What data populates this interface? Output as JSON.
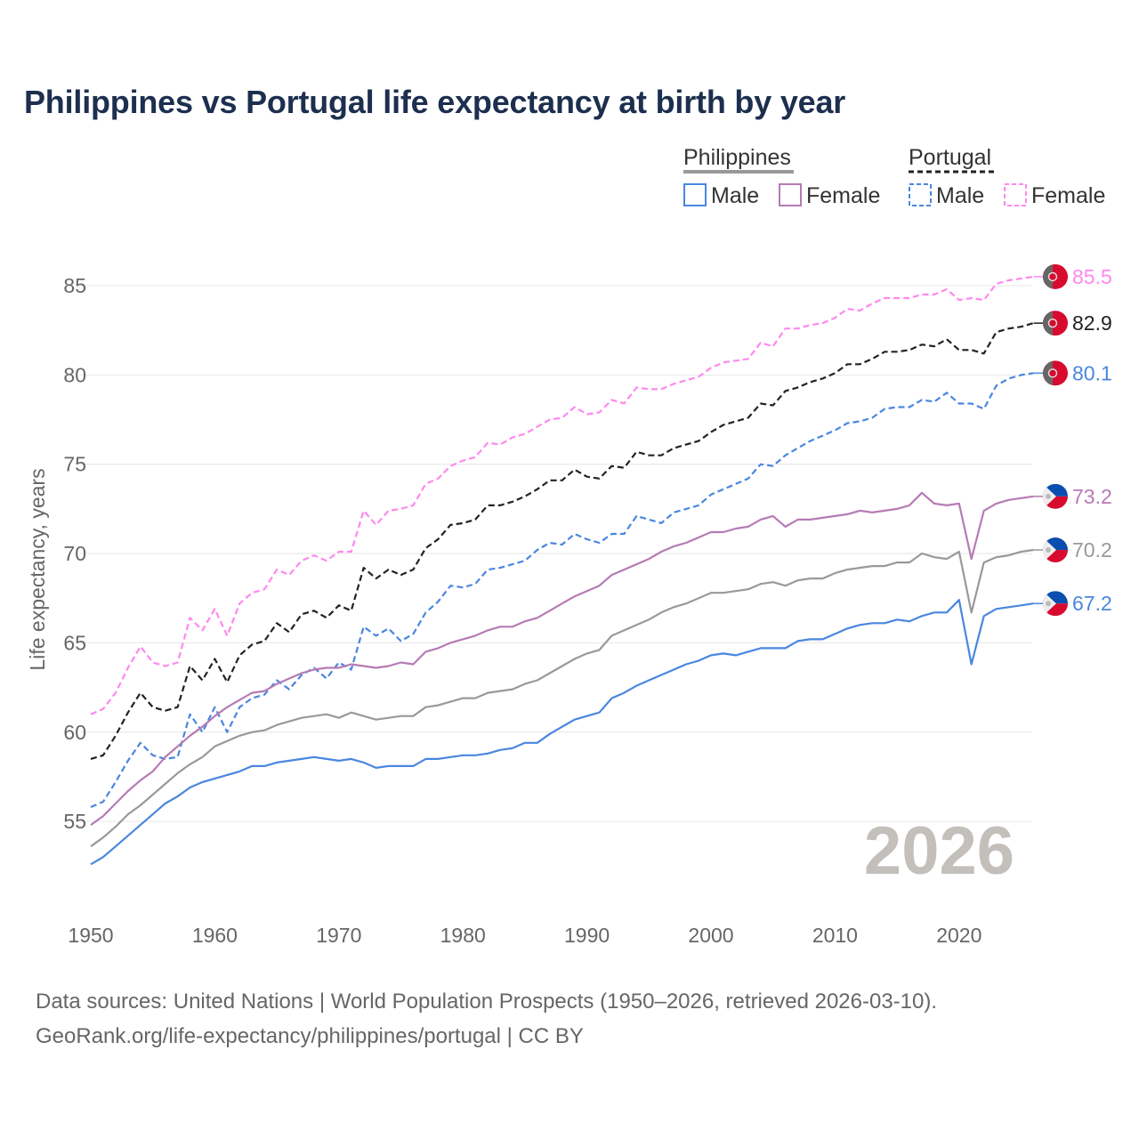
{
  "title": "Philippines vs Portugal life expectancy at birth by year",
  "legend": {
    "groups": [
      {
        "name": "Philippines",
        "items": [
          "Male",
          "Female"
        ]
      },
      {
        "name": "Portugal",
        "items": [
          "Male",
          "Female"
        ]
      }
    ]
  },
  "watermark_year": "2026",
  "source": {
    "line1": "Data sources: United Nations | World Population Prospects (1950–2026, retrieved 2026-03-10).",
    "line2": "GeoRank.org/life-expectancy/philippines/portugal | CC BY"
  },
  "chart_data": {
    "type": "line",
    "title": "Philippines vs Portugal life expectancy at birth by year",
    "xlabel": "",
    "ylabel": "Life expectancy, years",
    "xlim": [
      1950,
      2026
    ],
    "ylim": [
      51,
      87
    ],
    "x_ticks": [
      1950,
      1960,
      1970,
      1980,
      1990,
      2000,
      2010,
      2020
    ],
    "y_ticks": [
      55,
      60,
      65,
      70,
      75,
      80,
      85
    ],
    "grid": true,
    "legend_position": "top-right",
    "x_start": 1950,
    "series": [
      {
        "name": "Portugal Female",
        "country": "Portugal",
        "color": "#ff88ee",
        "dash": true,
        "end_label": "85.5",
        "values": [
          61.0,
          61.3,
          62.2,
          63.6,
          64.8,
          63.9,
          63.7,
          63.9,
          66.4,
          65.7,
          66.9,
          65.4,
          67.2,
          67.8,
          68.0,
          69.1,
          68.8,
          69.6,
          69.9,
          69.6,
          70.1,
          70.1,
          72.4,
          71.6,
          72.4,
          72.5,
          72.7,
          73.9,
          74.2,
          74.9,
          75.2,
          75.4,
          76.2,
          76.1,
          76.5,
          76.7,
          77.1,
          77.5,
          77.6,
          78.2,
          77.8,
          77.9,
          78.6,
          78.4,
          79.3,
          79.2,
          79.2,
          79.5,
          79.7,
          79.9,
          80.4,
          80.7,
          80.8,
          80.9,
          81.8,
          81.6,
          82.6,
          82.6,
          82.8,
          82.9,
          83.2,
          83.7,
          83.6,
          84.0,
          84.3,
          84.3,
          84.3,
          84.5,
          84.5,
          84.8,
          84.2,
          84.3,
          84.2,
          85.1,
          85.3,
          85.4,
          85.5
        ]
      },
      {
        "name": "Portugal",
        "country": "Portugal",
        "color": "#222222",
        "dash": true,
        "end_label": "82.9",
        "values": [
          58.5,
          58.7,
          59.8,
          61.1,
          62.2,
          61.4,
          61.2,
          61.4,
          63.7,
          62.9,
          64.1,
          62.8,
          64.3,
          64.9,
          65.1,
          66.1,
          65.6,
          66.6,
          66.8,
          66.4,
          67.1,
          66.8,
          69.2,
          68.6,
          69.1,
          68.8,
          69.1,
          70.3,
          70.8,
          71.6,
          71.7,
          71.9,
          72.7,
          72.7,
          72.9,
          73.2,
          73.6,
          74.1,
          74.1,
          74.7,
          74.3,
          74.2,
          74.9,
          74.8,
          75.7,
          75.5,
          75.5,
          75.9,
          76.1,
          76.3,
          76.8,
          77.2,
          77.4,
          77.6,
          78.4,
          78.3,
          79.1,
          79.3,
          79.6,
          79.8,
          80.1,
          80.6,
          80.6,
          80.9,
          81.3,
          81.3,
          81.4,
          81.7,
          81.6,
          82.0,
          81.4,
          81.4,
          81.2,
          82.4,
          82.6,
          82.7,
          82.9
        ]
      },
      {
        "name": "Portugal Male",
        "country": "Portugal",
        "color": "#4a86e0",
        "dash": true,
        "end_label": "80.1",
        "values": [
          55.8,
          56.1,
          57.2,
          58.4,
          59.4,
          58.7,
          58.5,
          58.6,
          61.0,
          60.0,
          61.4,
          60.0,
          61.4,
          61.9,
          62.1,
          62.9,
          62.4,
          63.2,
          63.6,
          63.0,
          63.9,
          63.5,
          65.9,
          65.4,
          65.8,
          65.1,
          65.5,
          66.7,
          67.3,
          68.2,
          68.1,
          68.3,
          69.1,
          69.2,
          69.4,
          69.6,
          70.2,
          70.6,
          70.5,
          71.1,
          70.8,
          70.6,
          71.1,
          71.1,
          72.1,
          71.9,
          71.7,
          72.3,
          72.5,
          72.7,
          73.3,
          73.6,
          73.9,
          74.2,
          75.0,
          74.9,
          75.5,
          75.9,
          76.3,
          76.6,
          76.9,
          77.3,
          77.4,
          77.6,
          78.1,
          78.2,
          78.2,
          78.6,
          78.5,
          79.0,
          78.4,
          78.4,
          78.1,
          79.4,
          79.8,
          80.0,
          80.1
        ]
      },
      {
        "name": "Philippines Female",
        "country": "Philippines",
        "color": "#b57bb5",
        "dash": false,
        "end_label": "73.2",
        "values": [
          54.8,
          55.3,
          56.0,
          56.7,
          57.3,
          57.8,
          58.6,
          59.2,
          59.8,
          60.3,
          60.9,
          61.4,
          61.8,
          62.2,
          62.3,
          62.7,
          63.0,
          63.3,
          63.5,
          63.6,
          63.6,
          63.8,
          63.7,
          63.6,
          63.7,
          63.9,
          63.8,
          64.5,
          64.7,
          65.0,
          65.2,
          65.4,
          65.7,
          65.9,
          65.9,
          66.2,
          66.4,
          66.8,
          67.2,
          67.6,
          67.9,
          68.2,
          68.8,
          69.1,
          69.4,
          69.7,
          70.1,
          70.4,
          70.6,
          70.9,
          71.2,
          71.2,
          71.4,
          71.5,
          71.9,
          72.1,
          71.5,
          71.9,
          71.9,
          72.0,
          72.1,
          72.2,
          72.4,
          72.3,
          72.4,
          72.5,
          72.7,
          73.4,
          72.8,
          72.7,
          72.8,
          69.7,
          72.4,
          72.8,
          73.0,
          73.1,
          73.2
        ]
      },
      {
        "name": "Philippines",
        "country": "Philippines",
        "color": "#999999",
        "dash": false,
        "end_label": "70.2",
        "values": [
          53.6,
          54.1,
          54.7,
          55.4,
          55.9,
          56.5,
          57.1,
          57.7,
          58.2,
          58.6,
          59.2,
          59.5,
          59.8,
          60.0,
          60.1,
          60.4,
          60.6,
          60.8,
          60.9,
          61.0,
          60.8,
          61.1,
          60.9,
          60.7,
          60.8,
          60.9,
          60.9,
          61.4,
          61.5,
          61.7,
          61.9,
          61.9,
          62.2,
          62.3,
          62.4,
          62.7,
          62.9,
          63.3,
          63.7,
          64.1,
          64.4,
          64.6,
          65.4,
          65.7,
          66.0,
          66.3,
          66.7,
          67.0,
          67.2,
          67.5,
          67.8,
          67.8,
          67.9,
          68.0,
          68.3,
          68.4,
          68.2,
          68.5,
          68.6,
          68.6,
          68.9,
          69.1,
          69.2,
          69.3,
          69.3,
          69.5,
          69.5,
          70.0,
          69.8,
          69.7,
          70.1,
          66.7,
          69.5,
          69.8,
          69.9,
          70.1,
          70.2
        ]
      },
      {
        "name": "Philippines Male",
        "country": "Philippines",
        "color": "#4a86e0",
        "dash": false,
        "end_label": "67.2",
        "values": [
          52.6,
          53.0,
          53.6,
          54.2,
          54.8,
          55.4,
          56.0,
          56.4,
          56.9,
          57.2,
          57.4,
          57.6,
          57.8,
          58.1,
          58.1,
          58.3,
          58.4,
          58.5,
          58.6,
          58.5,
          58.4,
          58.5,
          58.3,
          58.0,
          58.1,
          58.1,
          58.1,
          58.5,
          58.5,
          58.6,
          58.7,
          58.7,
          58.8,
          59.0,
          59.1,
          59.4,
          59.4,
          59.9,
          60.3,
          60.7,
          60.9,
          61.1,
          61.9,
          62.2,
          62.6,
          62.9,
          63.2,
          63.5,
          63.8,
          64.0,
          64.3,
          64.4,
          64.3,
          64.5,
          64.7,
          64.7,
          64.7,
          65.1,
          65.2,
          65.2,
          65.5,
          65.8,
          66.0,
          66.1,
          66.1,
          66.3,
          66.2,
          66.5,
          66.7,
          66.7,
          67.4,
          63.8,
          66.5,
          66.9,
          67.0,
          67.1,
          67.2
        ]
      }
    ]
  }
}
